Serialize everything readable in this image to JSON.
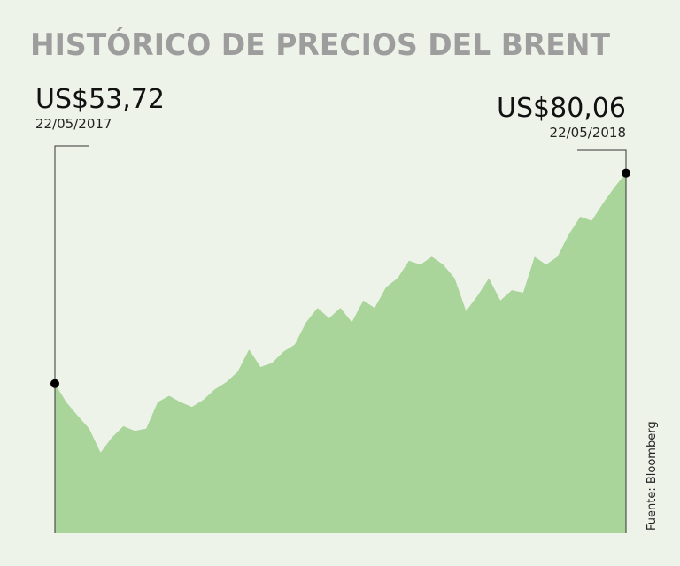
{
  "chart_data": {
    "type": "area",
    "title": "HISTÓRICO DE PRECIOS DEL BRENT",
    "source": "Fuente: Bloomberg",
    "categories": [
      "22/05/2017",
      null,
      null,
      null,
      null,
      null,
      null,
      null,
      null,
      null,
      null,
      null,
      null,
      null,
      null,
      null,
      null,
      null,
      null,
      null,
      null,
      null,
      null,
      null,
      null,
      null,
      null,
      null,
      null,
      null,
      null,
      null,
      null,
      null,
      null,
      null,
      null,
      null,
      null,
      null,
      null,
      null,
      null,
      null,
      null,
      null,
      null,
      null,
      null,
      null,
      "22/05/2018"
    ],
    "series": [
      {
        "name": "Brent",
        "color": "#a9d49a",
        "values": [
          53.72,
          51.4,
          49.7,
          48.1,
          45.1,
          47.0,
          48.4,
          47.8,
          48.1,
          51.4,
          52.2,
          51.4,
          50.8,
          51.7,
          53.0,
          53.9,
          55.2,
          58.0,
          55.8,
          56.3,
          57.7,
          58.6,
          61.4,
          63.2,
          61.9,
          63.2,
          61.4,
          64.1,
          63.2,
          65.8,
          66.9,
          69.1,
          68.6,
          69.6,
          68.6,
          66.9,
          62.8,
          64.7,
          66.9,
          64.1,
          65.4,
          65.1,
          69.6,
          68.6,
          69.6,
          72.4,
          74.6,
          74.1,
          76.3,
          78.3,
          80.06
        ]
      }
    ],
    "annotations": [
      {
        "label": "US$53,72",
        "date": "22/05/2017",
        "value": 53.72
      },
      {
        "label": "US$80,06",
        "date": "22/05/2018",
        "value": 80.06
      }
    ],
    "ylim": [
      35,
      85
    ]
  }
}
